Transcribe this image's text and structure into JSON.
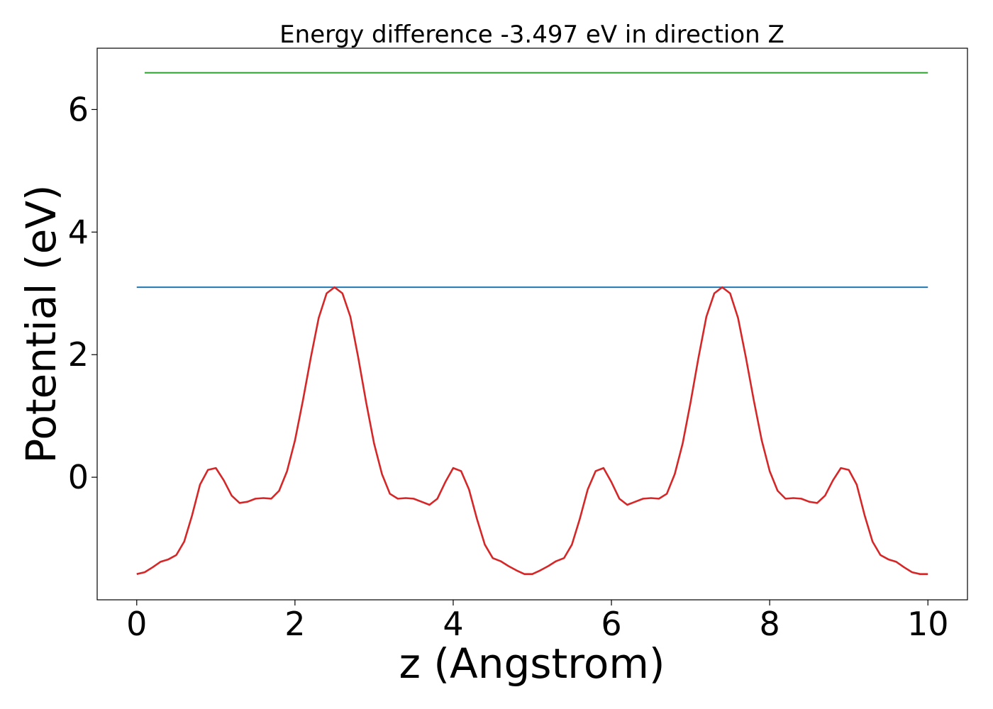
{
  "chart_data": {
    "type": "line",
    "title": "Energy difference -3.497 eV in direction Z",
    "xlabel": "z (Angstrom)",
    "ylabel": "Potential (eV)",
    "xlim": [
      -0.5,
      10.5
    ],
    "ylim": [
      -2.0,
      7.0
    ],
    "xticks": [
      0,
      2,
      4,
      6,
      8,
      10
    ],
    "xtick_labels": [
      "0",
      "2",
      "4",
      "6",
      "8",
      "10"
    ],
    "yticks": [
      0,
      2,
      4,
      6
    ],
    "ytick_labels": [
      "0",
      "2",
      "4",
      "6"
    ],
    "grid": false,
    "series": [
      {
        "color": "#2ca02c",
        "x": [
          0.1,
          10.0
        ],
        "y": [
          6.6,
          6.6
        ]
      },
      {
        "color": "#1f77b4",
        "x": [
          0.0,
          10.0
        ],
        "y": [
          3.1,
          3.1
        ]
      },
      {
        "color": "#d62728",
        "x": [
          0.0,
          0.1,
          0.2,
          0.3,
          0.4,
          0.5,
          0.6,
          0.7,
          0.8,
          0.9,
          1.0,
          1.1,
          1.2,
          1.3,
          1.4,
          1.5,
          1.6,
          1.7,
          1.8,
          1.9,
          2.0,
          2.1,
          2.2,
          2.3,
          2.4,
          2.5,
          2.6,
          2.7,
          2.8,
          2.9,
          3.0,
          3.1,
          3.2,
          3.3,
          3.4,
          3.5,
          3.6,
          3.7,
          3.8,
          3.9,
          4.0,
          4.1,
          4.2,
          4.3,
          4.4,
          4.5,
          4.6,
          4.7,
          4.8,
          4.9,
          5.0,
          5.1,
          5.2,
          5.3,
          5.4,
          5.5,
          5.6,
          5.7,
          5.8,
          5.9,
          6.0,
          6.1,
          6.2,
          6.3,
          6.4,
          6.5,
          6.6,
          6.7,
          6.8,
          6.9,
          7.0,
          7.1,
          7.2,
          7.3,
          7.4,
          7.5,
          7.6,
          7.7,
          7.8,
          7.9,
          8.0,
          8.1,
          8.2,
          8.3,
          8.4,
          8.5,
          8.6,
          8.7,
          8.8,
          8.9,
          9.0,
          9.1,
          9.2,
          9.3,
          9.4,
          9.5,
          9.6,
          9.7,
          9.8,
          9.9,
          10.0
        ],
        "y": [
          -1.58,
          -1.55,
          -1.47,
          -1.38,
          -1.34,
          -1.27,
          -1.05,
          -0.62,
          -0.12,
          0.12,
          0.15,
          -0.05,
          -0.3,
          -0.42,
          -0.4,
          -0.35,
          -0.34,
          -0.35,
          -0.22,
          0.1,
          0.6,
          1.25,
          1.95,
          2.6,
          3.0,
          3.1,
          3.0,
          2.62,
          1.95,
          1.22,
          0.55,
          0.05,
          -0.27,
          -0.35,
          -0.34,
          -0.35,
          -0.4,
          -0.45,
          -0.35,
          -0.08,
          0.15,
          0.1,
          -0.2,
          -0.68,
          -1.1,
          -1.32,
          -1.37,
          -1.45,
          -1.52,
          -1.58,
          -1.58,
          -1.52,
          -1.45,
          -1.37,
          -1.32,
          -1.1,
          -0.68,
          -0.2,
          0.1,
          0.15,
          -0.08,
          -0.35,
          -0.45,
          -0.4,
          -0.35,
          -0.34,
          -0.35,
          -0.27,
          0.05,
          0.55,
          1.22,
          1.95,
          2.62,
          3.0,
          3.1,
          3.0,
          2.6,
          1.95,
          1.25,
          0.6,
          0.1,
          -0.22,
          -0.35,
          -0.34,
          -0.35,
          -0.4,
          -0.42,
          -0.3,
          -0.05,
          0.15,
          0.12,
          -0.12,
          -0.62,
          -1.05,
          -1.27,
          -1.34,
          -1.38,
          -1.47,
          -1.55,
          -1.58,
          -1.58
        ]
      }
    ]
  }
}
